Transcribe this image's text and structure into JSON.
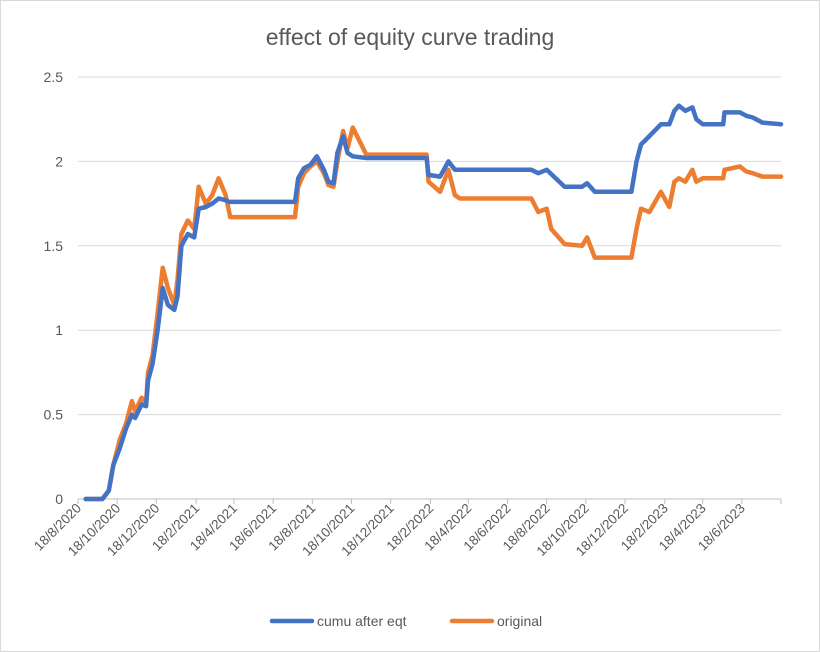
{
  "chart_data": {
    "type": "line",
    "title": "effect of equity curve trading",
    "xlabel": "",
    "ylabel": "",
    "ylim": [
      0,
      2.5
    ],
    "yticks": [
      "0",
      "0.5",
      "1",
      "1.5",
      "2",
      "2.5"
    ],
    "xticks": [
      "18/8/2020",
      "18/10/2020",
      "18/12/2020",
      "18/2/2021",
      "18/4/2021",
      "18/6/2021",
      "18/8/2021",
      "18/10/2021",
      "18/12/2021",
      "18/2/2022",
      "18/4/2022",
      "18/6/2022",
      "18/8/2022",
      "18/10/2022",
      "18/12/2022",
      "18/2/2023",
      "18/4/2023",
      "18/6/2023"
    ],
    "xlim": [
      "2020-08-18",
      "2023-08-18"
    ],
    "grid": true,
    "legend": "bottom",
    "series": [
      {
        "name": "cumu after eqt",
        "color": "#4472C4",
        "points": [
          [
            "2020-08-30",
            0
          ],
          [
            "2020-09-25",
            0
          ],
          [
            "2020-10-05",
            0.05
          ],
          [
            "2020-10-12",
            0.2
          ],
          [
            "2020-10-22",
            0.3
          ],
          [
            "2020-11-01",
            0.42
          ],
          [
            "2020-11-10",
            0.5
          ],
          [
            "2020-11-15",
            0.48
          ],
          [
            "2020-11-25",
            0.56
          ],
          [
            "2020-12-02",
            0.55
          ],
          [
            "2020-12-05",
            0.7
          ],
          [
            "2020-12-12",
            0.8
          ],
          [
            "2020-12-20",
            1.0
          ],
          [
            "2020-12-28",
            1.25
          ],
          [
            "2021-01-05",
            1.15
          ],
          [
            "2021-01-15",
            1.12
          ],
          [
            "2021-01-20",
            1.2
          ],
          [
            "2021-01-26",
            1.5
          ],
          [
            "2021-02-05",
            1.57
          ],
          [
            "2021-02-15",
            1.55
          ],
          [
            "2021-02-22",
            1.72
          ],
          [
            "2021-03-05",
            1.73
          ],
          [
            "2021-03-15",
            1.75
          ],
          [
            "2021-03-25",
            1.78
          ],
          [
            "2021-04-05",
            1.77
          ],
          [
            "2021-04-10",
            1.76
          ],
          [
            "2021-06-15",
            1.76
          ],
          [
            "2021-07-22",
            1.76
          ],
          [
            "2021-07-27",
            1.9
          ],
          [
            "2021-08-05",
            1.96
          ],
          [
            "2021-08-15",
            1.98
          ],
          [
            "2021-08-25",
            2.03
          ],
          [
            "2021-09-05",
            1.95
          ],
          [
            "2021-09-12",
            1.88
          ],
          [
            "2021-09-20",
            1.87
          ],
          [
            "2021-09-26",
            2.05
          ],
          [
            "2021-10-05",
            2.15
          ],
          [
            "2021-10-12",
            2.05
          ],
          [
            "2021-10-20",
            2.03
          ],
          [
            "2021-11-10",
            2.02
          ],
          [
            "2022-02-12",
            2.02
          ],
          [
            "2022-02-15",
            1.92
          ],
          [
            "2022-03-05",
            1.91
          ],
          [
            "2022-03-18",
            2.0
          ],
          [
            "2022-03-28",
            1.95
          ],
          [
            "2022-06-20",
            1.95
          ],
          [
            "2022-07-25",
            1.95
          ],
          [
            "2022-08-05",
            1.93
          ],
          [
            "2022-08-18",
            1.95
          ],
          [
            "2022-09-15",
            1.85
          ],
          [
            "2022-10-12",
            1.85
          ],
          [
            "2022-10-20",
            1.87
          ],
          [
            "2022-11-01",
            1.82
          ],
          [
            "2022-12-28",
            1.82
          ],
          [
            "2023-01-05",
            2.0
          ],
          [
            "2023-01-12",
            2.1
          ],
          [
            "2023-01-25",
            2.15
          ],
          [
            "2023-02-12",
            2.22
          ],
          [
            "2023-02-25",
            2.22
          ],
          [
            "2023-03-05",
            2.3
          ],
          [
            "2023-03-12",
            2.33
          ],
          [
            "2023-03-22",
            2.3
          ],
          [
            "2023-04-02",
            2.32
          ],
          [
            "2023-04-08",
            2.25
          ],
          [
            "2023-04-18",
            2.22
          ],
          [
            "2023-05-20",
            2.22
          ],
          [
            "2023-05-22",
            2.29
          ],
          [
            "2023-06-15",
            2.29
          ],
          [
            "2023-06-25",
            2.27
          ],
          [
            "2023-07-05",
            2.26
          ],
          [
            "2023-07-20",
            2.23
          ],
          [
            "2023-08-18",
            2.22
          ]
        ]
      },
      {
        "name": "original",
        "color": "#ED7D31",
        "points": [
          [
            "2020-08-30",
            0
          ],
          [
            "2020-09-25",
            0
          ],
          [
            "2020-10-05",
            0.05
          ],
          [
            "2020-10-12",
            0.2
          ],
          [
            "2020-10-22",
            0.35
          ],
          [
            "2020-11-01",
            0.45
          ],
          [
            "2020-11-10",
            0.58
          ],
          [
            "2020-11-15",
            0.52
          ],
          [
            "2020-11-25",
            0.6
          ],
          [
            "2020-12-02",
            0.57
          ],
          [
            "2020-12-05",
            0.75
          ],
          [
            "2020-12-12",
            0.85
          ],
          [
            "2020-12-20",
            1.1
          ],
          [
            "2020-12-28",
            1.37
          ],
          [
            "2021-01-05",
            1.25
          ],
          [
            "2021-01-15",
            1.15
          ],
          [
            "2021-01-20",
            1.3
          ],
          [
            "2021-01-26",
            1.57
          ],
          [
            "2021-02-05",
            1.65
          ],
          [
            "2021-02-15",
            1.6
          ],
          [
            "2021-02-22",
            1.85
          ],
          [
            "2021-03-05",
            1.75
          ],
          [
            "2021-03-15",
            1.8
          ],
          [
            "2021-03-25",
            1.9
          ],
          [
            "2021-04-05",
            1.8
          ],
          [
            "2021-04-12",
            1.67
          ],
          [
            "2021-06-15",
            1.67
          ],
          [
            "2021-07-22",
            1.67
          ],
          [
            "2021-07-27",
            1.85
          ],
          [
            "2021-08-05",
            1.93
          ],
          [
            "2021-08-15",
            1.97
          ],
          [
            "2021-08-25",
            2.0
          ],
          [
            "2021-09-05",
            1.93
          ],
          [
            "2021-09-12",
            1.86
          ],
          [
            "2021-09-20",
            1.85
          ],
          [
            "2021-09-26",
            2.0
          ],
          [
            "2021-10-05",
            2.18
          ],
          [
            "2021-10-12",
            2.08
          ],
          [
            "2021-10-20",
            2.2
          ],
          [
            "2021-11-10",
            2.04
          ],
          [
            "2022-02-12",
            2.04
          ],
          [
            "2022-02-15",
            1.88
          ],
          [
            "2022-03-05",
            1.82
          ],
          [
            "2022-03-18",
            1.95
          ],
          [
            "2022-03-28",
            1.8
          ],
          [
            "2022-04-05",
            1.78
          ],
          [
            "2022-07-25",
            1.78
          ],
          [
            "2022-08-05",
            1.7
          ],
          [
            "2022-08-18",
            1.72
          ],
          [
            "2022-08-25",
            1.6
          ],
          [
            "2022-09-15",
            1.51
          ],
          [
            "2022-10-12",
            1.5
          ],
          [
            "2022-10-20",
            1.55
          ],
          [
            "2022-11-01",
            1.43
          ],
          [
            "2022-12-28",
            1.43
          ],
          [
            "2023-01-05",
            1.6
          ],
          [
            "2023-01-12",
            1.72
          ],
          [
            "2023-01-25",
            1.7
          ],
          [
            "2023-02-12",
            1.82
          ],
          [
            "2023-02-25",
            1.73
          ],
          [
            "2023-03-05",
            1.88
          ],
          [
            "2023-03-12",
            1.9
          ],
          [
            "2023-03-22",
            1.88
          ],
          [
            "2023-04-02",
            1.95
          ],
          [
            "2023-04-08",
            1.88
          ],
          [
            "2023-04-18",
            1.9
          ],
          [
            "2023-05-20",
            1.9
          ],
          [
            "2023-05-22",
            1.95
          ],
          [
            "2023-06-15",
            1.97
          ],
          [
            "2023-06-25",
            1.94
          ],
          [
            "2023-07-05",
            1.93
          ],
          [
            "2023-07-20",
            1.91
          ],
          [
            "2023-08-18",
            1.91
          ]
        ]
      }
    ]
  }
}
